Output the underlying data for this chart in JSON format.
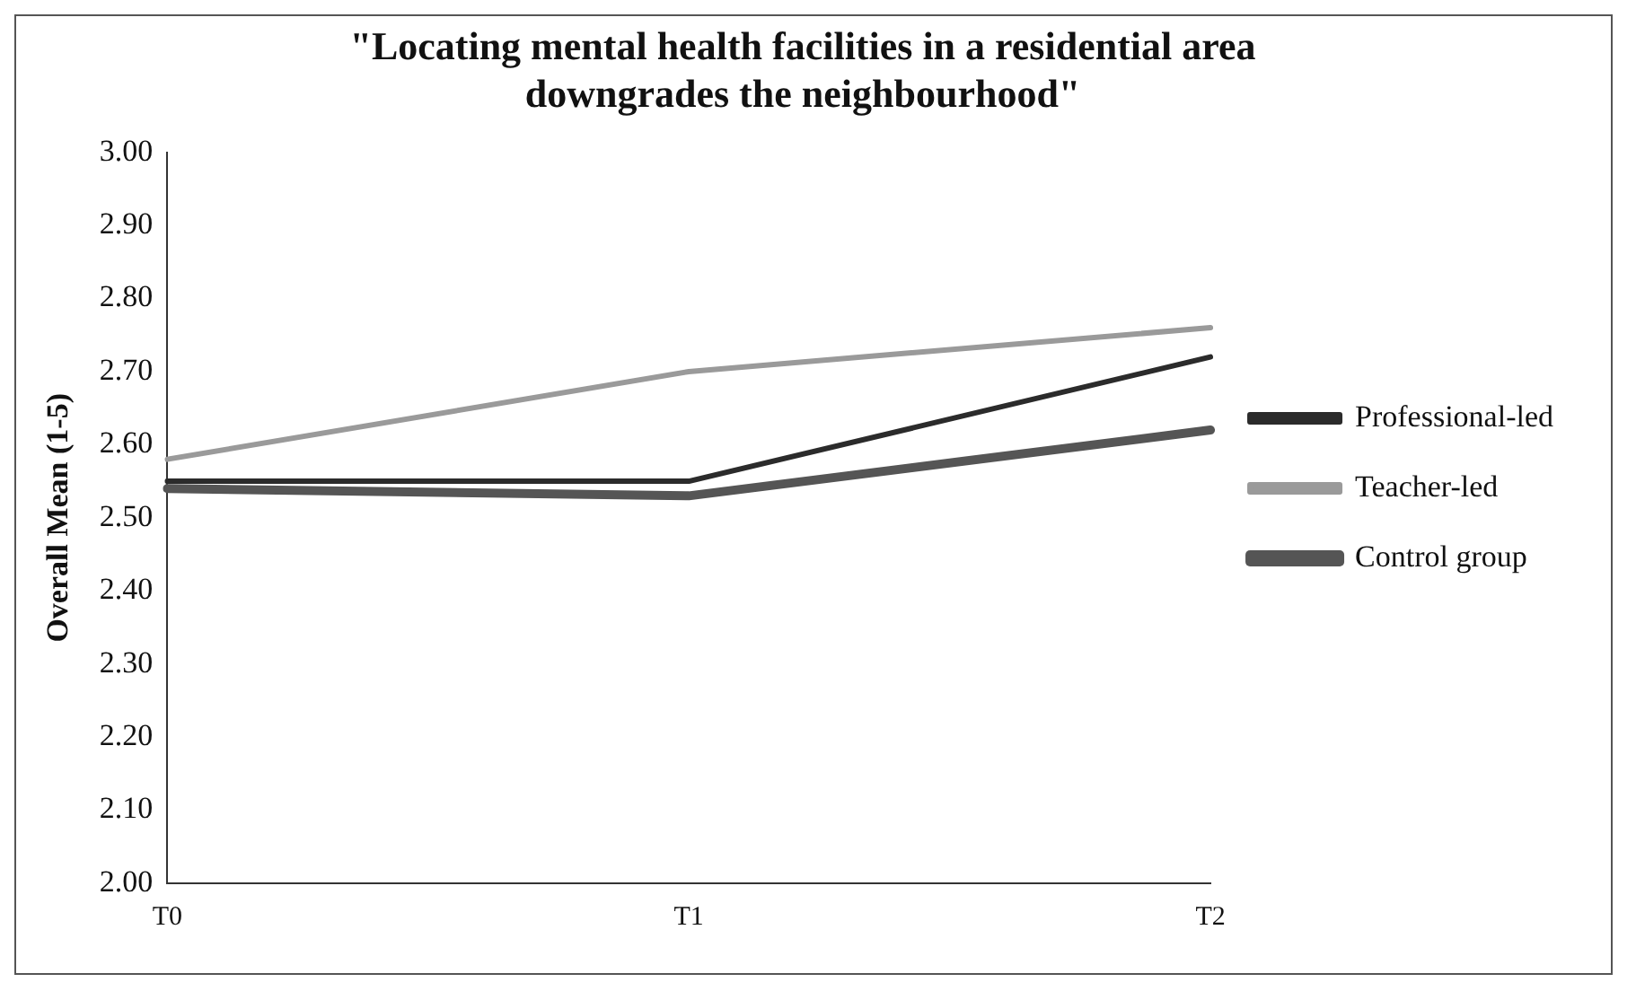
{
  "chart_data": {
    "type": "line",
    "title": "\"Locating mental health facilities in a residential area downgrades the neighbourhood\"",
    "ylabel": "Overall Mean (1-5)",
    "categories": [
      "T0",
      "T1",
      "T2"
    ],
    "series": [
      {
        "name": "Professional-led",
        "color": "#2b2b2b",
        "values": [
          2.55,
          2.55,
          2.72
        ]
      },
      {
        "name": "Teacher-led",
        "color": "#9a9a9a",
        "values": [
          2.58,
          2.7,
          2.76
        ]
      },
      {
        "name": "Control group",
        "color": "#555555",
        "values": [
          2.54,
          2.53,
          2.62
        ]
      }
    ],
    "ylim": [
      2,
      3
    ],
    "yticks": [
      {
        "value": 2,
        "label": "2.00"
      },
      {
        "value": 2.1,
        "label": "2.10"
      },
      {
        "value": 2.2,
        "label": "2.20"
      },
      {
        "value": 2.3,
        "label": "2.30"
      },
      {
        "value": 2.4,
        "label": "2.40"
      },
      {
        "value": 2.5,
        "label": "2.50"
      },
      {
        "value": 2.6,
        "label": "2.60"
      },
      {
        "value": 2.7,
        "label": "2.70"
      },
      {
        "value": 2.8,
        "label": "2.80"
      },
      {
        "value": 2.9,
        "label": "2.90"
      },
      {
        "value": 3,
        "label": "3.00"
      }
    ],
    "grid": false,
    "legend": "right",
    "marker": "none",
    "line_style": "solid"
  }
}
